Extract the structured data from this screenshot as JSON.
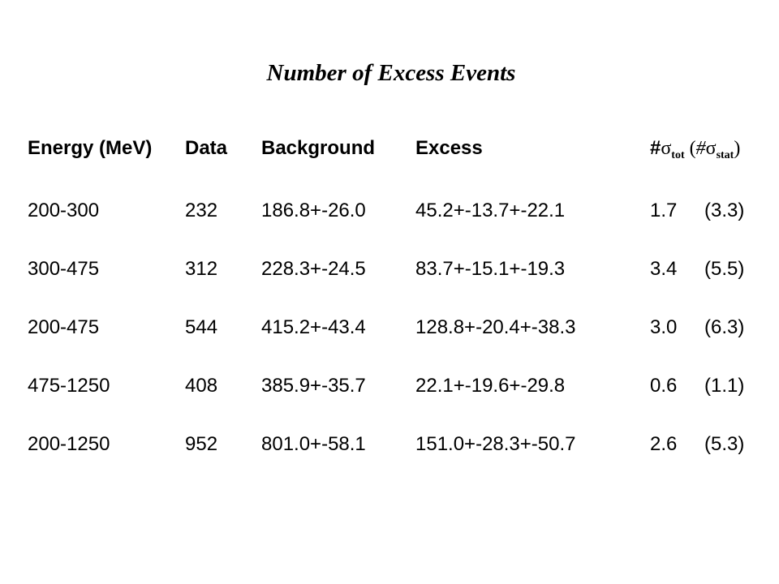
{
  "title": "Number of Excess Events",
  "header": {
    "energy": "Energy (MeV)",
    "data": "Data",
    "background": "Background",
    "excess": "Excess",
    "sigma_hash": "#",
    "sigma_symbol": "σ",
    "sigma_tot_sub": "tot",
    "sigma_open": " (",
    "sigma_hash2": "#",
    "sigma_symbol2": "σ",
    "sigma_stat_sub": "stat",
    "sigma_close": ")"
  },
  "rows": [
    {
      "energy": "200-300",
      "data": "232",
      "background": "186.8+-26.0",
      "excess": "45.2+-13.7+-22.1",
      "sigma_tot": "1.7",
      "sigma_stat": "(3.3)"
    },
    {
      "energy": "300-475",
      "data": "312",
      "background": "228.3+-24.5",
      "excess": "83.7+-15.1+-19.3",
      "sigma_tot": "3.4",
      "sigma_stat": "(5.5)"
    },
    {
      "energy": "200-475",
      "data": "544",
      "background": "415.2+-43.4",
      "excess": "128.8+-20.4+-38.3",
      "sigma_tot": "3.0",
      "sigma_stat": "(6.3)"
    },
    {
      "energy": "475-1250",
      "data": "408",
      "background": "385.9+-35.7",
      "excess": "22.1+-19.6+-29.8",
      "sigma_tot": "0.6",
      "sigma_stat": "(1.1)"
    },
    {
      "energy": "200-1250",
      "data": "952",
      "background": "801.0+-58.1",
      "excess": "151.0+-28.3+-50.7",
      "sigma_tot": "2.6",
      "sigma_stat": "(5.3)"
    }
  ]
}
